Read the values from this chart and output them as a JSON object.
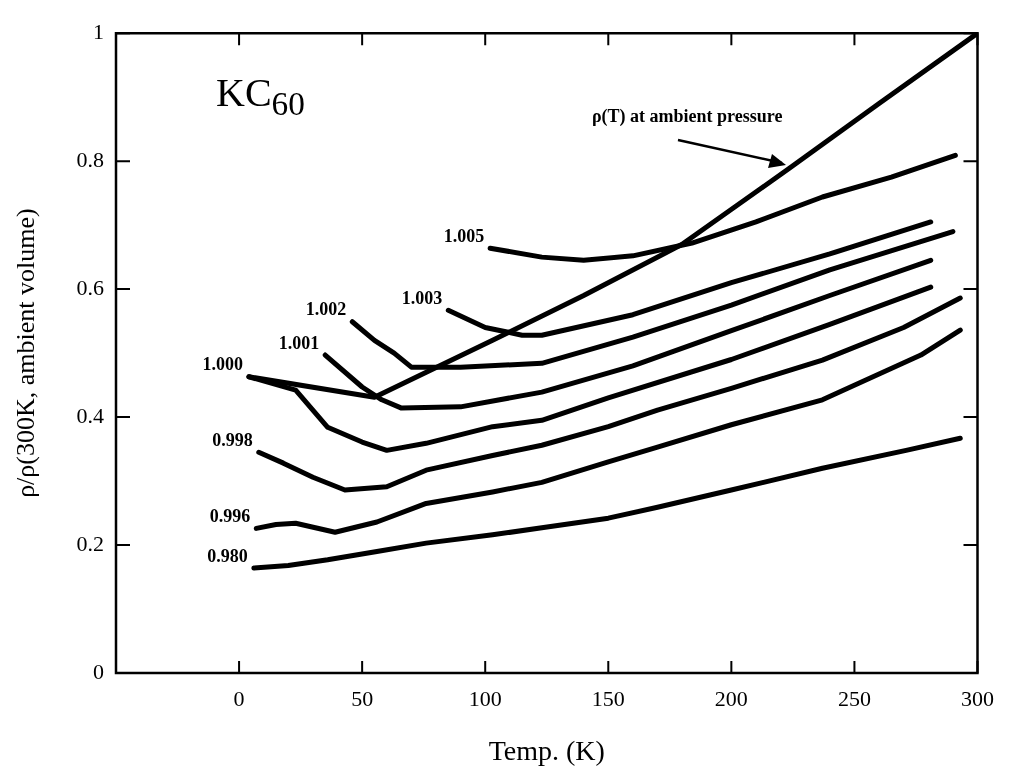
{
  "chart_data": {
    "type": "line",
    "xlabel": "Temp. (K)",
    "ylabel": "ρ/ρ(300K, ambient volume)",
    "xlim": [
      -50,
      300
    ],
    "xticks": [
      {
        "value": -50,
        "label": null
      },
      0,
      50,
      100,
      150,
      200,
      250,
      300
    ],
    "ylim": [
      0,
      1
    ],
    "yticks": [
      0,
      0.2,
      0.4,
      0.6,
      0.8,
      1
    ],
    "grid": false,
    "legend": false,
    "line_style": "solid",
    "annotations": [
      "KC$_{60}$",
      {
        "text": "ρ(T) at ambient pressure",
        "x": 224,
        "y": 0.79
      }
    ],
    "series": [
      {
        "name": "0.980",
        "color": "#000000",
        "x": [
          6,
          20,
          36,
          56,
          76,
          103,
          123,
          150,
          170,
          200,
          237,
          271,
          293
        ],
        "values": [
          0.164,
          0.168,
          0.177,
          0.19,
          0.203,
          0.216,
          0.227,
          0.242,
          0.259,
          0.286,
          0.32,
          0.348,
          0.367
        ]
      },
      {
        "name": "0.996",
        "color": "#000000",
        "x": [
          7,
          15,
          23,
          39,
          56,
          76,
          103,
          123,
          150,
          170,
          200,
          237,
          277,
          293
        ],
        "values": [
          0.226,
          0.232,
          0.234,
          0.22,
          0.236,
          0.265,
          0.283,
          0.298,
          0.33,
          0.353,
          0.388,
          0.427,
          0.497,
          0.536
        ]
      },
      {
        "name": "0.998",
        "color": "#000000",
        "x": [
          8,
          18,
          30,
          43,
          60,
          76,
          103,
          123,
          150,
          170,
          200,
          237,
          270,
          293
        ],
        "values": [
          0.345,
          0.328,
          0.306,
          0.286,
          0.291,
          0.317,
          0.34,
          0.356,
          0.385,
          0.411,
          0.445,
          0.489,
          0.54,
          0.586
        ]
      },
      {
        "name": "1.000",
        "color": "#000000",
        "x": [
          4,
          23,
          36,
          50,
          60,
          76,
          103,
          123,
          150,
          200,
          240,
          281
        ],
        "values": [
          0.463,
          0.442,
          0.384,
          0.361,
          0.348,
          0.359,
          0.385,
          0.395,
          0.43,
          0.49,
          0.545,
          0.603
        ]
      },
      {
        "name": "1.001",
        "color": "#000000",
        "x": [
          35,
          50,
          58,
          66,
          90,
          123,
          160,
          200,
          240,
          281
        ],
        "values": [
          0.497,
          0.447,
          0.427,
          0.414,
          0.416,
          0.439,
          0.48,
          0.535,
          0.59,
          0.645
        ]
      },
      {
        "name": "1.002",
        "color": "#000000",
        "x": [
          46,
          55,
          63,
          70,
          90,
          123,
          160,
          200,
          240,
          290
        ],
        "values": [
          0.549,
          0.52,
          0.5,
          0.478,
          0.478,
          0.484,
          0.525,
          0.575,
          0.63,
          0.69
        ]
      },
      {
        "name": "1.003",
        "color": "#000000",
        "x": [
          85,
          100,
          115,
          123,
          160,
          200,
          240,
          281
        ],
        "values": [
          0.567,
          0.54,
          0.528,
          0.528,
          0.56,
          0.61,
          0.655,
          0.705
        ]
      },
      {
        "name": "1.005",
        "color": "#000000",
        "x": [
          102,
          123,
          140,
          160,
          184,
          210,
          237,
          265,
          291
        ],
        "values": [
          0.664,
          0.65,
          0.645,
          0.652,
          0.672,
          0.705,
          0.744,
          0.775,
          0.809
        ]
      },
      {
        "color": "#000000",
        "x": [
          4,
          55,
          103,
          140,
          180,
          224,
          260,
          300
        ],
        "values": [
          0.463,
          0.431,
          0.52,
          0.59,
          0.67,
          0.79,
          0.89,
          1.0
        ]
      }
    ]
  }
}
